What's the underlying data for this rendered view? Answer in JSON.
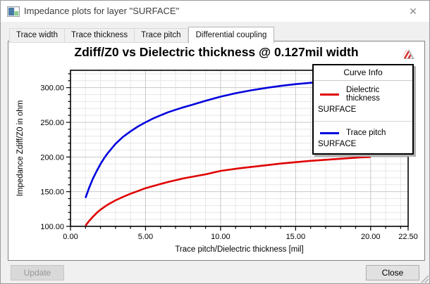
{
  "window": {
    "title": "Impedance plots for layer \"SURFACE\"",
    "close_glyph": "✕"
  },
  "tabs": [
    {
      "label": "Trace width",
      "active": false
    },
    {
      "label": "Trace thickness",
      "active": false
    },
    {
      "label": "Trace pitch",
      "active": false
    },
    {
      "label": "Differential coupling",
      "active": true
    }
  ],
  "legend": {
    "header": "Curve Info"
  },
  "buttons": {
    "update": "Update",
    "close": "Close"
  },
  "chart_data": {
    "type": "line",
    "title": "Zdiff/Z0 vs Dielectric thickness @ 0.127mil width",
    "xlabel": "Trace pitch/Dielectric thickness [mil]",
    "ylabel": "Impedance Zdiff/Z0 in ohm",
    "xlim": [
      0,
      22.5
    ],
    "ylim": [
      100,
      325
    ],
    "x_major_ticks": [
      0,
      5,
      10,
      15,
      20,
      22.5
    ],
    "x_tick_labels": [
      "0.00",
      "5.00",
      "10.00",
      "15.00",
      "20.00",
      "22.50"
    ],
    "x_minor_step": 1,
    "y_major_ticks": [
      100,
      150,
      200,
      250,
      300
    ],
    "y_tick_labels": [
      "100.00",
      "150.00",
      "200.00",
      "250.00",
      "300.00"
    ],
    "y_minor_step": 10,
    "grid": true,
    "legend_position": "top-right",
    "colors": {
      "grid_minor": "#e6e6e6",
      "grid_major": "#c8c8c8",
      "frame": "#000000"
    },
    "series": [
      {
        "name": "Dielectric thickness",
        "layer": "SURFACE",
        "color": "#e00000",
        "x": [
          1,
          1.25,
          1.5,
          1.75,
          2,
          2.25,
          2.5,
          3,
          3.5,
          4,
          4.5,
          5,
          5.5,
          6,
          6.5,
          7,
          7.5,
          8,
          9,
          10,
          11,
          12,
          13,
          14,
          15,
          16,
          17,
          18,
          19,
          20
        ],
        "y": [
          101,
          108,
          114,
          119.5,
          124,
          128,
          131.5,
          137.5,
          142.5,
          147,
          151,
          155,
          158,
          161,
          164,
          166.5,
          169,
          171,
          175,
          180,
          183,
          185.5,
          188,
          190.5,
          192.5,
          194.5,
          196,
          197.5,
          199,
          200
        ]
      },
      {
        "name": "Trace pitch",
        "layer": "SURFACE",
        "color": "#0000dd",
        "x": [
          1,
          1.25,
          1.5,
          1.75,
          2,
          2.25,
          2.5,
          3,
          3.5,
          4,
          4.5,
          5,
          5.5,
          6,
          6.5,
          7,
          7.5,
          8,
          9,
          10,
          11,
          12,
          13,
          14,
          15,
          16,
          17,
          18,
          19,
          20
        ],
        "y": [
          141,
          156,
          169,
          180,
          190,
          198.5,
          206,
          219,
          229,
          237,
          244,
          250,
          255.5,
          260,
          264.5,
          268,
          271.5,
          274.5,
          281,
          287,
          292,
          296,
          299.5,
          302.5,
          305,
          307,
          309,
          310.5,
          311.8,
          313
        ]
      }
    ]
  }
}
